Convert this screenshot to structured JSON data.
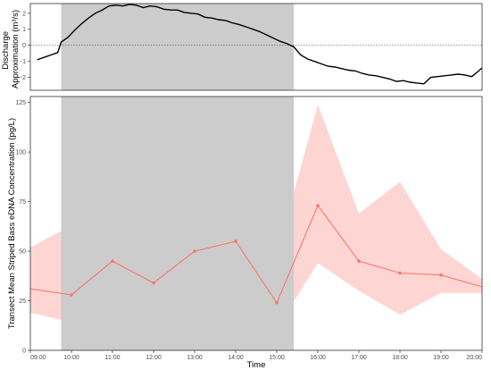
{
  "colors": {
    "shade": "#cccccc",
    "ribbon": "#f8766d",
    "ribbon_opacity": 0.3,
    "line": "#f8766d",
    "discharge_line": "#000000",
    "zero_line": "#555555"
  },
  "chart_data": [
    {
      "type": "line",
      "panel": "top",
      "ylabel": "Discharge Approximation (m³/s)",
      "ylabel_line1": "Discharge",
      "ylabel_line2": "Approximation (m³/s)",
      "xlim": [
        "09:00",
        "20:00"
      ],
      "ylim": [
        -2.8,
        2.6
      ],
      "yticks": [
        -2,
        -1,
        0,
        1,
        2
      ],
      "ytick_labels": [
        "-2",
        "-1",
        "0",
        "1",
        "2"
      ],
      "grid": false,
      "reference_line": {
        "y": 0,
        "style": "dotted"
      },
      "shaded_interval": [
        "09:45",
        "15:25"
      ],
      "series": [
        {
          "x": [
            "09:10",
            "09:20",
            "09:30",
            "09:40",
            "09:45",
            "09:55",
            "10:05",
            "10:15",
            "10:25",
            "10:35",
            "10:45",
            "10:55",
            "11:05",
            "11:15",
            "11:25",
            "11:35",
            "11:45",
            "11:55",
            "12:05",
            "12:15",
            "12:25",
            "12:35",
            "12:45",
            "12:55",
            "13:05",
            "13:15",
            "13:25",
            "13:35",
            "13:45",
            "13:55",
            "14:05",
            "14:15",
            "14:25",
            "14:35",
            "14:45",
            "14:55",
            "15:05",
            "15:15",
            "15:25",
            "15:35",
            "15:45",
            "15:55",
            "16:05",
            "16:15",
            "16:25",
            "16:35",
            "16:45",
            "16:55",
            "17:05",
            "17:15",
            "17:25",
            "17:35",
            "17:45",
            "17:55",
            "18:05",
            "18:15",
            "18:25",
            "18:35",
            "18:45",
            "18:55",
            "19:05",
            "19:15",
            "19:25",
            "19:35",
            "19:45",
            "19:55",
            "20:00"
          ],
          "values": [
            -0.9,
            -0.75,
            -0.6,
            -0.45,
            0.2,
            0.5,
            0.95,
            1.35,
            1.7,
            2.0,
            2.2,
            2.45,
            2.5,
            2.45,
            2.55,
            2.5,
            2.35,
            2.45,
            2.4,
            2.25,
            2.2,
            2.2,
            2.05,
            2.0,
            1.95,
            1.75,
            1.7,
            1.6,
            1.55,
            1.4,
            1.3,
            1.15,
            1.0,
            0.85,
            0.65,
            0.45,
            0.25,
            0.1,
            -0.1,
            -0.6,
            -0.85,
            -1.0,
            -1.15,
            -1.3,
            -1.35,
            -1.45,
            -1.55,
            -1.6,
            -1.75,
            -1.85,
            -1.9,
            -2.0,
            -2.1,
            -2.25,
            -2.2,
            -2.3,
            -2.35,
            -2.4,
            -2.0,
            -1.95,
            -1.9,
            -1.85,
            -1.8,
            -1.85,
            -1.95,
            -1.6,
            -1.4
          ]
        }
      ]
    },
    {
      "type": "line",
      "panel": "bottom",
      "xlabel": "Time",
      "ylabel": "Transect Mean Striped Bass eDNA Concentration (pg/L)",
      "xlim": [
        "09:00",
        "20:00"
      ],
      "ylim": [
        0,
        128
      ],
      "yticks": [
        0,
        25,
        50,
        75,
        100,
        125
      ],
      "ytick_labels": [
        "0",
        "25",
        "50",
        "75",
        "100",
        "125"
      ],
      "xticks": [
        "09:00",
        "10:00",
        "11:00",
        "12:00",
        "13:00",
        "14:00",
        "15:00",
        "16:00",
        "17:00",
        "18:00",
        "19:00",
        "20:00"
      ],
      "grid": false,
      "shaded_interval": [
        "09:45",
        "15:25"
      ],
      "series": [
        {
          "x": [
            "09:00",
            "10:00",
            "11:00",
            "12:00",
            "13:00",
            "14:00",
            "15:00",
            "16:00",
            "17:00",
            "18:00",
            "19:00",
            "20:00"
          ],
          "markers": [
            false,
            true,
            true,
            true,
            true,
            true,
            true,
            true,
            true,
            true,
            true,
            false
          ],
          "values": [
            31,
            28,
            45,
            34,
            50,
            55,
            24,
            73,
            45,
            39,
            38,
            32
          ],
          "lower": [
            19,
            14,
            23,
            18,
            30,
            42,
            11,
            44,
            30,
            18,
            29,
            29
          ],
          "upper": [
            52,
            63,
            87,
            62,
            79,
            74,
            48,
            124,
            69,
            85,
            51,
            36
          ]
        }
      ]
    }
  ]
}
